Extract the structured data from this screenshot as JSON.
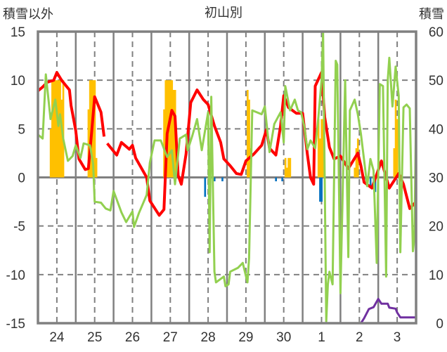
{
  "chart_data": {
    "type": "line",
    "title": "初山別",
    "ylabel_left": "積雪以外",
    "ylabel_right": "積雪",
    "x_unit": "hours since 24th 00:00",
    "xlim": [
      0,
      240
    ],
    "ylim_left": [
      -15,
      15
    ],
    "ylim_right": [
      0,
      60
    ],
    "yticks_left": [
      15,
      10,
      5,
      0,
      -5,
      -10,
      -15
    ],
    "yticks_right": [
      60,
      50,
      40,
      30,
      20,
      10,
      0
    ],
    "xtick_labels": [
      "24",
      "25",
      "26",
      "27",
      "28",
      "29",
      "30",
      "1",
      "2",
      "3"
    ],
    "grid": true,
    "colors": {
      "red": "#ff0000",
      "green": "#92d050",
      "orange": "#ffc000",
      "blue": "#0070c0",
      "purple": "#7030a0",
      "grid": "#808080"
    },
    "series": [
      {
        "name": "red-line",
        "axis": "left",
        "color": "#ff0000",
        "points": [
          [
            0,
            8.9
          ],
          [
            3,
            9.3
          ],
          [
            6,
            9.8
          ],
          [
            10,
            10
          ],
          [
            12,
            10.8
          ],
          [
            15,
            10
          ],
          [
            20,
            9
          ],
          [
            21,
            7.4
          ],
          [
            24,
            4.8
          ],
          [
            26,
            1.9
          ],
          [
            30,
            0.8
          ],
          [
            32,
            0.9
          ],
          [
            34,
            4.5
          ],
          [
            36,
            8.3
          ],
          [
            40,
            6.7
          ],
          [
            42,
            4.2
          ],
          null,
          [
            44,
            3.5
          ],
          [
            50,
            2.3
          ],
          [
            53,
            3.6
          ],
          [
            58,
            2.9
          ],
          [
            60,
            3.3
          ],
          [
            62,
            2.0
          ],
          [
            69,
            0
          ],
          [
            71,
            -2.4
          ],
          [
            77,
            -3.9
          ],
          [
            80,
            -3.3
          ],
          [
            82,
            4.5
          ],
          [
            85,
            6.9
          ],
          [
            87,
            6.3
          ],
          [
            89,
            0.2
          ],
          [
            91,
            -0.7
          ],
          [
            94,
            2.4
          ],
          [
            97,
            7.7
          ],
          [
            101,
            9
          ],
          [
            105,
            8
          ],
          [
            108,
            7.5
          ],
          [
            112,
            5.3
          ],
          [
            116,
            3.6
          ],
          [
            118,
            1.9
          ],
          [
            122,
            1.2
          ],
          [
            126,
            0.4
          ],
          [
            129,
            0.3
          ],
          [
            132,
            1.7
          ],
          [
            137,
            2.4
          ],
          [
            142,
            3.3
          ],
          [
            145,
            4.9
          ],
          [
            147,
            3.0
          ],
          [
            151,
            2.3
          ],
          [
            154,
            5.3
          ],
          [
            156,
            8.4
          ],
          [
            159,
            7.2
          ],
          [
            164,
            6.6
          ],
          [
            168,
            6.6
          ],
          [
            171,
            2.4
          ],
          [
            173,
            0
          ],
          [
            175,
            -0.7
          ],
          [
            176,
            9.4
          ],
          [
            180,
            10.8
          ],
          [
            182,
            6.2
          ],
          [
            185,
            3.1
          ],
          [
            188,
            1.9
          ],
          [
            192,
            2.2
          ],
          [
            197,
            0.9
          ],
          [
            200,
            1.7
          ],
          [
            203,
            2.5
          ],
          [
            205,
            1.2
          ],
          [
            207,
            -0.5
          ],
          [
            212,
            -1.1
          ],
          [
            218,
            1.7
          ],
          [
            223,
            -1.1
          ],
          [
            229,
            0.4
          ],
          [
            232,
            -0.7
          ],
          [
            236,
            -3.2
          ],
          [
            240,
            -2.5
          ]
        ]
      },
      {
        "name": "green-line",
        "axis": "left",
        "color": "#92d050",
        "points": [
          [
            0,
            4.4
          ],
          [
            3,
            4.0
          ],
          [
            5,
            10.6
          ],
          [
            8,
            6.0
          ],
          [
            11,
            8
          ],
          [
            13,
            5.3
          ],
          [
            14,
            6.5
          ],
          [
            16,
            4.0
          ],
          [
            19,
            1.7
          ],
          [
            22,
            2.2
          ],
          [
            24,
            3.3
          ],
          [
            27,
            2.0
          ],
          [
            29,
            3.5
          ],
          [
            33,
            3.3
          ],
          [
            35,
            1.4
          ],
          [
            36,
            -2.5
          ],
          [
            40,
            -2.6
          ],
          [
            43,
            -3.2
          ],
          [
            46,
            -3.4
          ],
          [
            48,
            -1.4
          ],
          [
            53,
            -3.6
          ],
          [
            56,
            -4.6
          ],
          [
            60,
            -3.5
          ],
          [
            61,
            -5.1
          ],
          [
            64,
            -3.7
          ],
          [
            69,
            -1.8
          ],
          [
            71,
            1.5
          ],
          [
            74,
            3.8
          ],
          [
            78,
            3.8
          ],
          [
            82,
            2.1
          ],
          [
            85,
            2.8
          ],
          [
            87,
            -0.7
          ],
          [
            90,
            4.0
          ],
          [
            94,
            4.4
          ],
          [
            95,
            2.8
          ],
          [
            98,
            4.3
          ],
          [
            101,
            6.0
          ],
          [
            104,
            2.8
          ],
          [
            108,
            6.7
          ],
          [
            109,
            -7.7
          ],
          [
            110,
            8.3
          ],
          [
            112,
            -9.7
          ],
          [
            113,
            -10.8
          ],
          [
            118,
            -10.2
          ],
          [
            119,
            -11.2
          ],
          [
            121,
            -11
          ],
          [
            122,
            -9.7
          ],
          [
            127,
            -9.3
          ],
          [
            130,
            -8.8
          ],
          [
            133,
            -10.8
          ],
          [
            134,
            -8.3
          ],
          [
            136,
            6.9
          ],
          [
            142,
            6.5
          ],
          [
            144,
            7.3
          ],
          [
            147,
            2.6
          ],
          [
            150,
            5.5
          ],
          [
            154,
            6.7
          ],
          [
            156,
            3.6
          ],
          [
            157,
            9.4
          ],
          [
            160,
            6.9
          ],
          [
            163,
            8
          ],
          [
            165,
            6.9
          ],
          [
            167,
            6.7
          ],
          [
            169,
            5.3
          ],
          [
            171,
            2.9
          ],
          [
            173,
            3.8
          ],
          [
            176,
            3.0
          ],
          [
            178,
            6.2
          ],
          [
            180,
            10
          ],
          [
            181,
            14.9
          ],
          [
            183,
            -14.8
          ],
          [
            184,
            -11
          ],
          [
            185,
            -9.7
          ],
          [
            187,
            -11
          ],
          [
            189,
            12
          ],
          [
            190,
            11.6
          ],
          [
            192,
            -11.9
          ],
          [
            195,
            10
          ],
          [
            197,
            -8.2
          ],
          [
            198,
            6.9
          ],
          [
            201,
            8
          ],
          [
            203,
            6.5
          ],
          [
            205,
            4.5
          ],
          [
            207,
            1.8
          ],
          [
            209,
            -0.9
          ],
          [
            211,
            1.9
          ],
          [
            213,
            0.7
          ],
          [
            215,
            -8.8
          ],
          [
            217,
            9.6
          ],
          [
            219,
            9.4
          ],
          [
            221,
            -10.2
          ],
          [
            222,
            10
          ],
          [
            223,
            12.3
          ],
          [
            225,
            7.3
          ],
          [
            227,
            11.4
          ],
          [
            229,
            8.4
          ],
          [
            230,
            -7.7
          ],
          [
            232,
            7.2
          ],
          [
            234,
            7.5
          ],
          [
            236,
            7.1
          ],
          [
            238,
            -7.6
          ],
          [
            239,
            -6.1
          ],
          [
            240,
            6.9
          ]
        ]
      },
      {
        "name": "purple-line",
        "axis": "right",
        "color": "#7030a0",
        "points": [
          [
            0,
            0
          ],
          [
            205,
            0
          ],
          [
            207,
            1
          ],
          [
            210,
            2.9
          ],
          [
            213,
            3.3
          ],
          [
            216,
            5
          ],
          [
            218,
            4
          ],
          [
            222,
            4
          ],
          [
            223,
            3.2
          ],
          [
            227,
            3
          ],
          [
            228,
            2.2
          ],
          [
            230,
            1.2
          ],
          [
            240,
            1.2
          ]
        ]
      }
    ],
    "bars": [
      {
        "name": "orange-bars",
        "axis": "left",
        "color": "#ffc000",
        "points": [
          [
            8,
            5
          ],
          [
            9,
            10
          ],
          [
            10,
            10
          ],
          [
            11,
            10
          ],
          [
            12,
            10
          ],
          [
            13,
            10
          ],
          [
            14,
            10
          ],
          [
            15,
            8
          ],
          [
            16,
            10
          ],
          [
            32,
            7
          ],
          [
            33,
            10
          ],
          [
            34,
            10
          ],
          [
            35,
            10
          ],
          [
            36,
            10
          ],
          [
            37,
            2
          ],
          [
            80,
            7
          ],
          [
            81,
            10
          ],
          [
            82,
            10
          ],
          [
            83,
            10
          ],
          [
            84,
            10
          ],
          [
            85,
            10
          ],
          [
            86,
            9
          ],
          [
            87,
            9
          ],
          [
            133,
            9
          ],
          [
            134,
            8
          ],
          [
            135,
            3
          ],
          [
            157,
            2
          ],
          [
            158,
            1
          ],
          [
            159,
            2
          ],
          [
            160,
            2
          ],
          [
            178,
            6
          ],
          [
            179,
            4
          ],
          [
            180,
            6
          ],
          [
            181,
            6
          ],
          [
            201,
            1
          ],
          [
            202,
            3
          ],
          [
            203,
            4
          ],
          [
            226,
            3
          ],
          [
            227,
            8
          ],
          [
            228,
            6
          ]
        ]
      },
      {
        "name": "blue-bars",
        "axis": "left",
        "color": "#0070c0",
        "points": [
          [
            106,
            -2
          ],
          [
            112,
            -0.4
          ],
          [
            117,
            -0.4
          ],
          [
            151,
            -0.4
          ],
          [
            155,
            -0.4
          ],
          [
            179,
            -2.5
          ],
          [
            180,
            -2.5
          ],
          [
            207,
            -0.6
          ],
          [
            209,
            -0.5
          ],
          [
            211,
            -1
          ],
          [
            213,
            -1
          ],
          [
            214,
            -1.5
          ]
        ]
      }
    ]
  }
}
